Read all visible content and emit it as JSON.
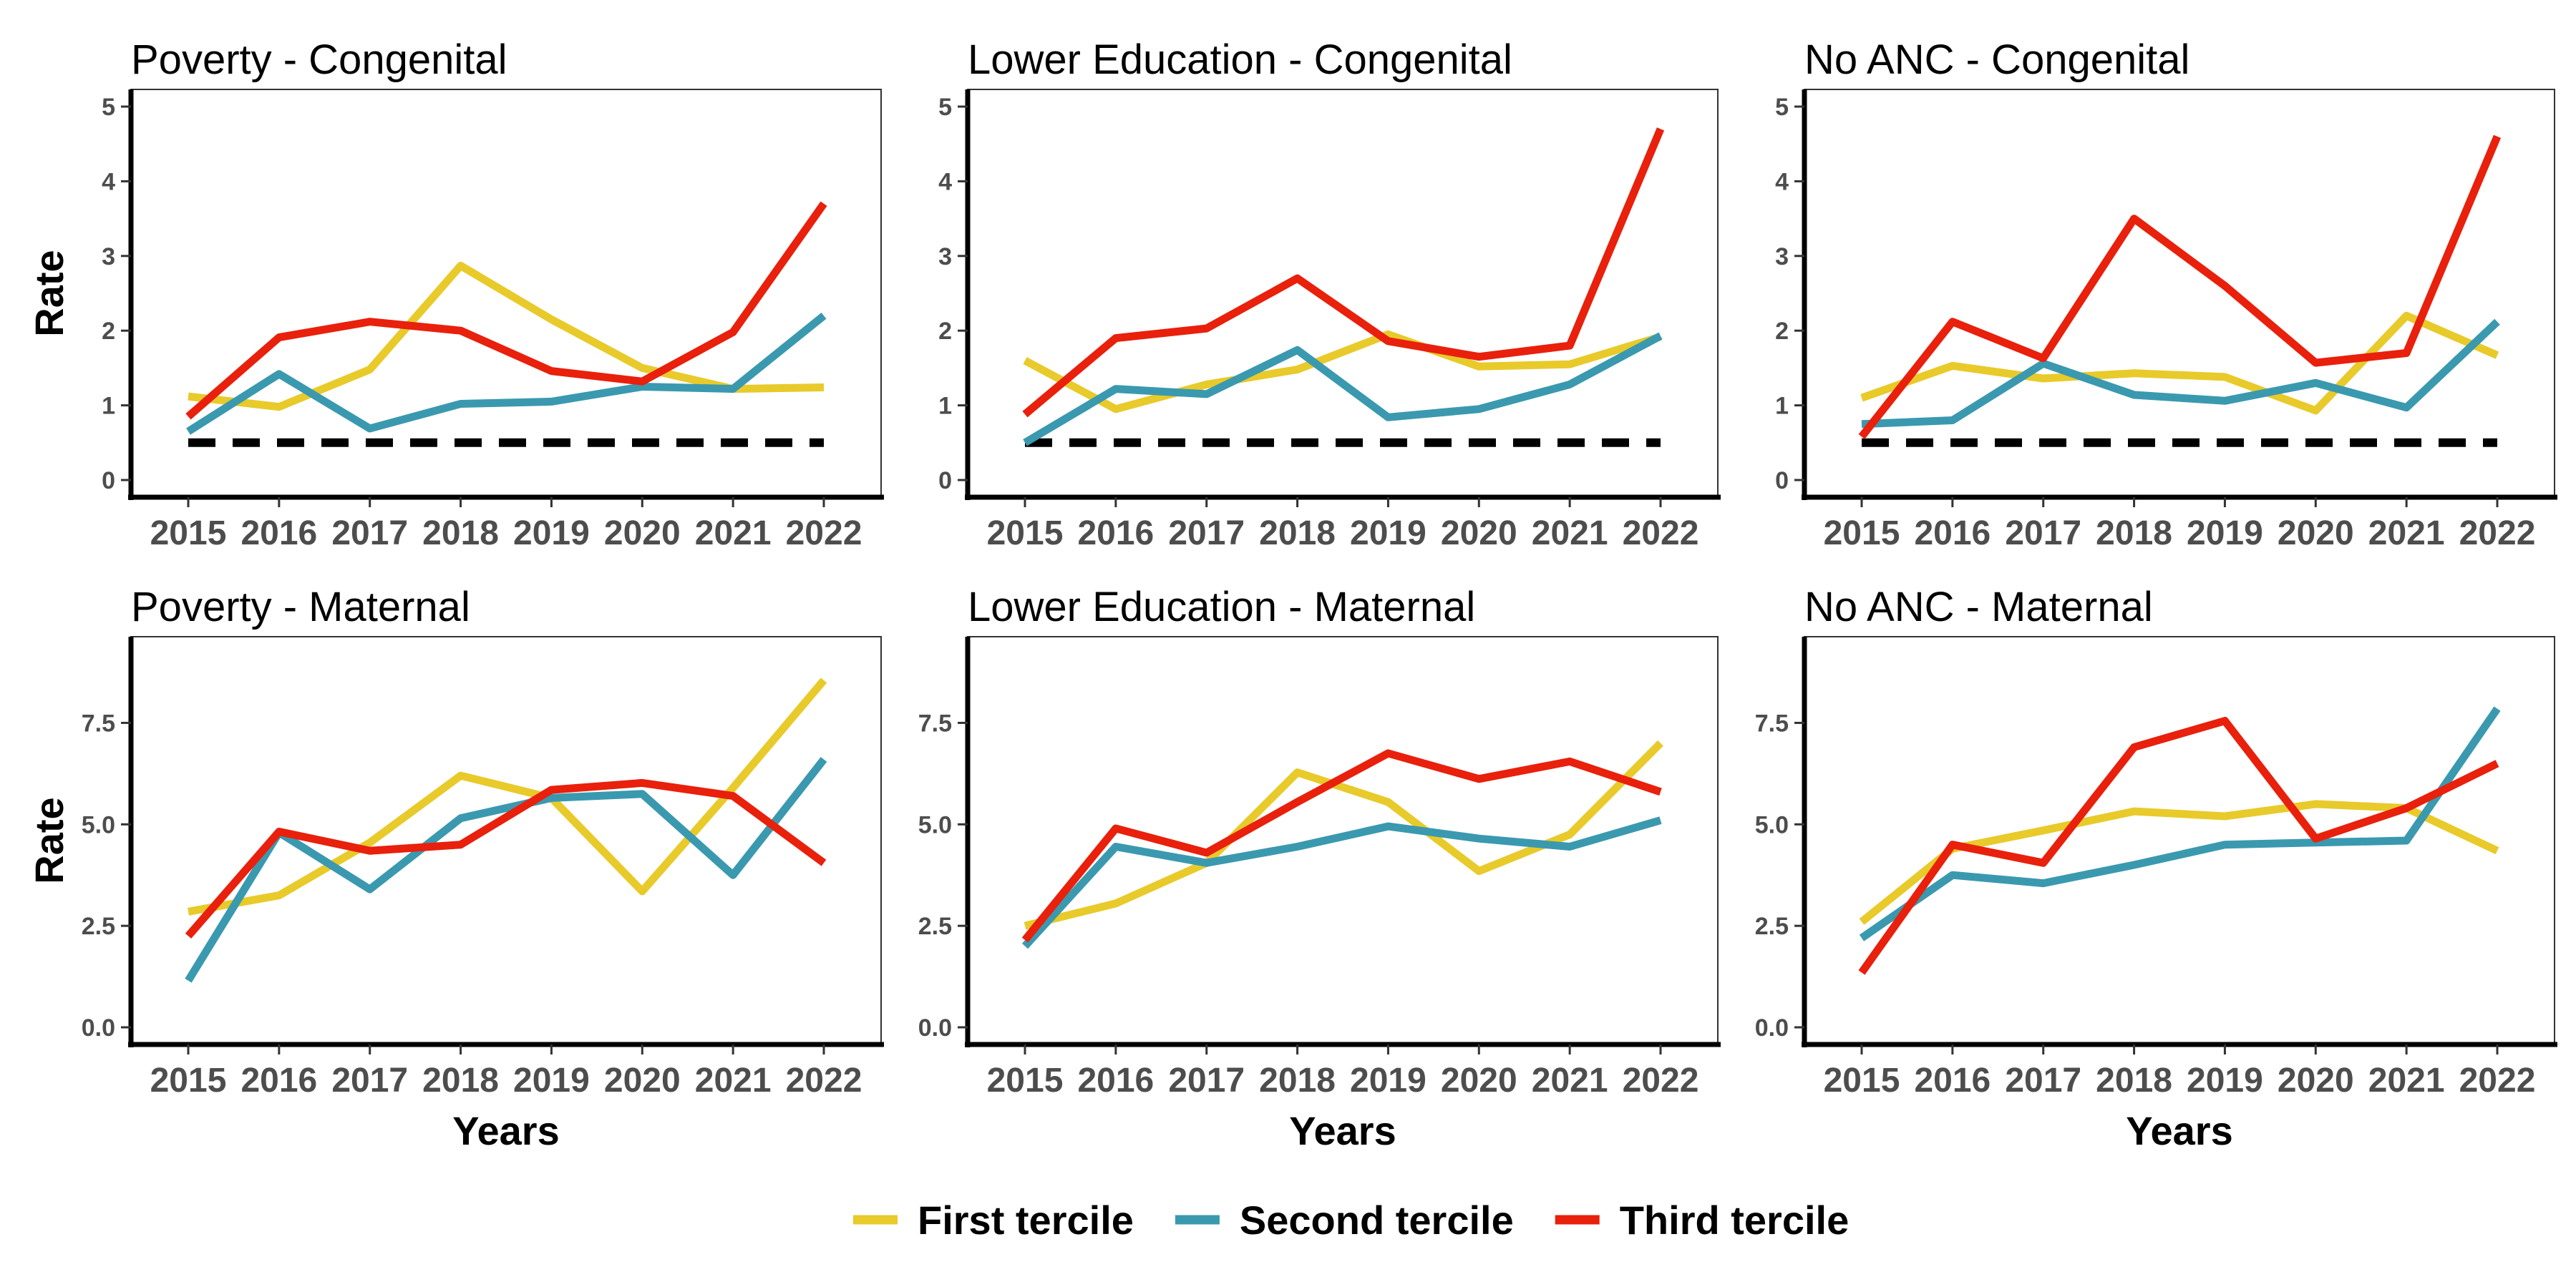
{
  "legend": {
    "entries": [
      {
        "label": "First tercile",
        "color": "#E8CA2A"
      },
      {
        "label": "Second tercile",
        "color": "#3A99AF"
      },
      {
        "label": "Third tercile",
        "color": "#E8200C"
      }
    ]
  },
  "chart_data": [
    {
      "type": "line",
      "title": "Poverty - Congenital",
      "xlabel": "",
      "ylabel": "Rate",
      "categories": [
        "2015",
        "2016",
        "2017",
        "2018",
        "2019",
        "2020",
        "2021",
        "2022"
      ],
      "ylim": [
        0,
        5
      ],
      "yticks": [
        "0",
        "1",
        "2",
        "3",
        "4",
        "5"
      ],
      "ytick_values": [
        0,
        1,
        2,
        3,
        4,
        5
      ],
      "reference_line": 0.5,
      "series": [
        {
          "name": "First tercile",
          "values": [
            1.12,
            0.98,
            1.48,
            2.87,
            2.15,
            1.5,
            1.22,
            1.24
          ]
        },
        {
          "name": "Second tercile",
          "values": [
            0.65,
            1.42,
            0.69,
            1.02,
            1.05,
            1.25,
            1.22,
            2.2
          ]
        },
        {
          "name": "Third tercile",
          "values": [
            0.85,
            1.91,
            2.12,
            2.0,
            1.46,
            1.32,
            1.98,
            3.7
          ]
        }
      ]
    },
    {
      "type": "line",
      "title": "Lower Education - Congenital",
      "xlabel": "",
      "ylabel": "",
      "categories": [
        "2015",
        "2016",
        "2017",
        "2018",
        "2019",
        "2020",
        "2021",
        "2022"
      ],
      "ylim": [
        0,
        5
      ],
      "yticks": [
        "0",
        "1",
        "2",
        "3",
        "4",
        "5"
      ],
      "ytick_values": [
        0,
        1,
        2,
        3,
        4,
        5
      ],
      "reference_line": 0.5,
      "series": [
        {
          "name": "First tercile",
          "values": [
            1.6,
            0.95,
            1.28,
            1.48,
            1.95,
            1.52,
            1.55,
            1.92
          ]
        },
        {
          "name": "Second tercile",
          "values": [
            0.5,
            1.22,
            1.15,
            1.74,
            0.84,
            0.95,
            1.28,
            1.93
          ]
        },
        {
          "name": "Third tercile",
          "values": [
            0.88,
            1.9,
            2.03,
            2.7,
            1.86,
            1.65,
            1.8,
            4.7
          ]
        }
      ]
    },
    {
      "type": "line",
      "title": "No ANC - Congenital",
      "xlabel": "",
      "ylabel": "",
      "categories": [
        "2015",
        "2016",
        "2017",
        "2018",
        "2019",
        "2020",
        "2021",
        "2022"
      ],
      "ylim": [
        0,
        5
      ],
      "yticks": [
        "0",
        "1",
        "2",
        "3",
        "4",
        "5"
      ],
      "ytick_values": [
        0,
        1,
        2,
        3,
        4,
        5
      ],
      "reference_line": 0.5,
      "series": [
        {
          "name": "First tercile",
          "values": [
            1.1,
            1.53,
            1.36,
            1.43,
            1.38,
            0.93,
            2.2,
            1.67
          ]
        },
        {
          "name": "Second tercile",
          "values": [
            0.75,
            0.8,
            1.56,
            1.14,
            1.06,
            1.3,
            0.97,
            2.12
          ]
        },
        {
          "name": "Third tercile",
          "values": [
            0.58,
            2.12,
            1.63,
            3.5,
            2.6,
            1.57,
            1.7,
            4.6
          ]
        }
      ]
    },
    {
      "type": "line",
      "title": "Poverty - Maternal",
      "xlabel": "Years",
      "ylabel": "Rate",
      "categories": [
        "2015",
        "2016",
        "2017",
        "2018",
        "2019",
        "2020",
        "2021",
        "2022"
      ],
      "ylim": [
        0,
        9.2
      ],
      "yticks": [
        "0.0",
        "2.5",
        "5.0",
        "7.5"
      ],
      "ytick_values": [
        0,
        2.5,
        5,
        7.5
      ],
      "series": [
        {
          "name": "First tercile",
          "values": [
            2.85,
            3.25,
            4.55,
            6.2,
            5.65,
            3.35,
            5.9,
            8.55
          ]
        },
        {
          "name": "Second tercile",
          "values": [
            1.15,
            4.8,
            3.4,
            5.15,
            5.65,
            5.75,
            3.75,
            6.6
          ]
        },
        {
          "name": "Third tercile",
          "values": [
            2.25,
            4.82,
            4.35,
            4.5,
            5.85,
            6.02,
            5.7,
            4.05
          ]
        }
      ]
    },
    {
      "type": "line",
      "title": "Lower Education - Maternal",
      "xlabel": "Years",
      "ylabel": "",
      "categories": [
        "2015",
        "2016",
        "2017",
        "2018",
        "2019",
        "2020",
        "2021",
        "2022"
      ],
      "ylim": [
        0,
        9.2
      ],
      "yticks": [
        "0.0",
        "2.5",
        "5.0",
        "7.5"
      ],
      "ytick_values": [
        0,
        2.5,
        5,
        7.5
      ],
      "series": [
        {
          "name": "First tercile",
          "values": [
            2.5,
            3.05,
            4.05,
            6.28,
            5.55,
            3.85,
            4.75,
            7.0
          ]
        },
        {
          "name": "Second tercile",
          "values": [
            2.0,
            4.45,
            4.05,
            4.45,
            4.95,
            4.65,
            4.45,
            5.1
          ]
        },
        {
          "name": "Third tercile",
          "values": [
            2.15,
            4.9,
            4.3,
            5.55,
            6.75,
            6.12,
            6.55,
            5.8
          ]
        }
      ]
    },
    {
      "type": "line",
      "title": "No ANC - Maternal",
      "xlabel": "Years",
      "ylabel": "",
      "categories": [
        "2015",
        "2016",
        "2017",
        "2018",
        "2019",
        "2020",
        "2021",
        "2022"
      ],
      "ylim": [
        0,
        9.2
      ],
      "yticks": [
        "0.0",
        "2.5",
        "5.0",
        "7.5"
      ],
      "ytick_values": [
        0,
        2.5,
        5,
        7.5
      ],
      "series": [
        {
          "name": "First tercile",
          "values": [
            2.6,
            4.4,
            4.85,
            5.32,
            5.2,
            5.5,
            5.4,
            4.35
          ]
        },
        {
          "name": "Second tercile",
          "values": [
            2.2,
            3.75,
            3.55,
            4.0,
            4.5,
            4.55,
            4.6,
            7.85
          ]
        },
        {
          "name": "Third tercile",
          "values": [
            1.35,
            4.5,
            4.05,
            6.9,
            7.55,
            4.65,
            5.4,
            6.5
          ]
        }
      ]
    }
  ]
}
